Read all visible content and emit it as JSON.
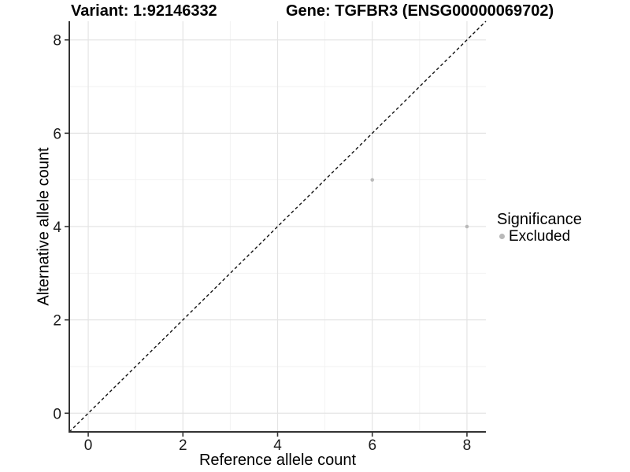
{
  "header": {
    "variant_title": "Variant: 1:92146332",
    "gene_title": "Gene: TGFBR3 (ENSG00000069702)"
  },
  "chart_data": {
    "type": "scatter",
    "xlabel": "Reference allele count",
    "ylabel": "Alternative allele count",
    "xlim": [
      -0.4,
      8.4
    ],
    "ylim": [
      -0.4,
      8.4
    ],
    "x_ticks": [
      0,
      2,
      4,
      6,
      8
    ],
    "y_ticks": [
      0,
      2,
      4,
      6,
      8
    ],
    "x_minor_ticks": [
      1,
      3,
      5,
      7
    ],
    "y_minor_ticks": [
      1,
      3,
      5,
      7
    ],
    "grid": true,
    "series": [
      {
        "name": "Excluded",
        "color": "#b9b9b9",
        "points": [
          {
            "x": 6,
            "y": 5
          },
          {
            "x": 8,
            "y": 4
          }
        ]
      }
    ],
    "reference_line": {
      "slope": 1,
      "intercept": 0,
      "style": "dashed",
      "color": "#111111"
    },
    "legend": {
      "title": "Significance",
      "position": "right",
      "items": [
        {
          "label": "Excluded",
          "color": "#b9b9b9"
        }
      ]
    },
    "theme": {
      "background": "#ffffff",
      "major_grid": "#e4e4e4",
      "minor_grid": "#f2f2f2",
      "axis_line": "#333333",
      "tick_mark": "#333333",
      "tick_text": "#1a1a1a"
    }
  }
}
